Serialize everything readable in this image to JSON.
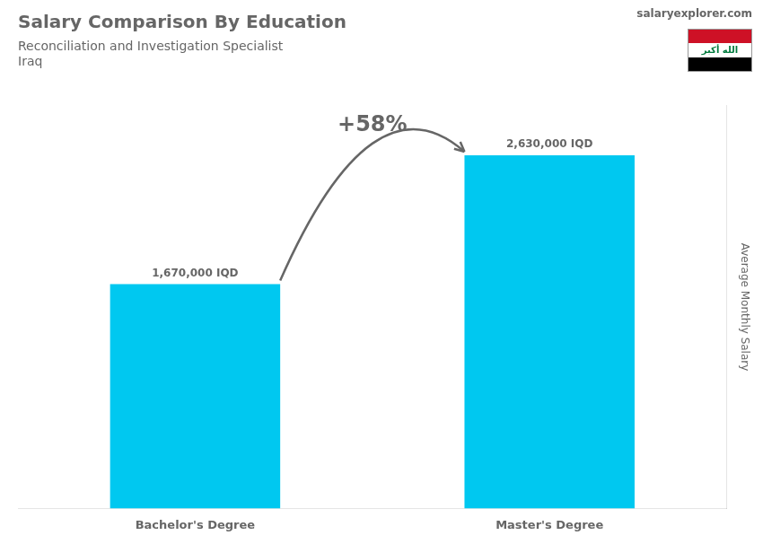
{
  "chart_data": {
    "type": "bar",
    "title": "Salary Comparison By Education",
    "subtitle": [
      "Reconciliation and Investigation Specialist",
      "Iraq"
    ],
    "y_label": "Average Monthly Salary",
    "categories": [
      "Bachelor's Degree",
      "Master's Degree"
    ],
    "values": [
      1670000,
      2630000
    ],
    "value_labels": [
      "1,670,000 IQD",
      "2,630,000 IQD"
    ],
    "data_labels": true,
    "color": "#00c8f0",
    "ylim": [
      0,
      3000000
    ],
    "grid": false,
    "tick_labels": "x",
    "annotations": [
      "+58%",
      "salaryexplorer.com",
      "الله أكبر"
    ]
  }
}
